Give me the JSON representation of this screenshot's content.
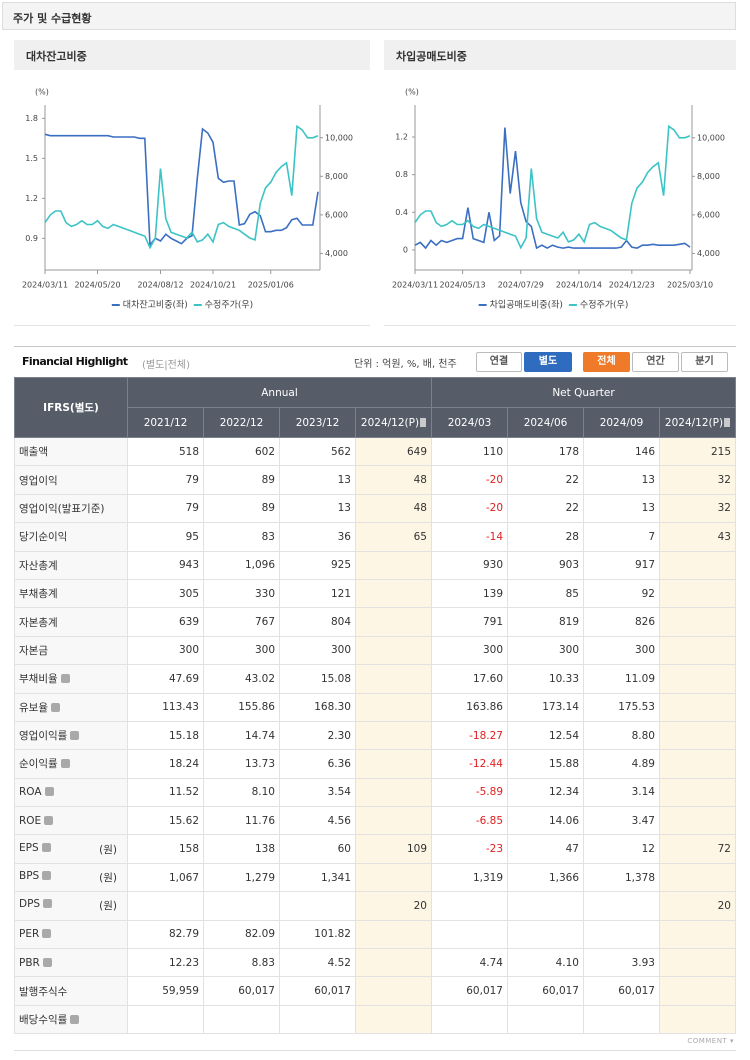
{
  "page_title": "주가 및 수급현황",
  "chart_data": [
    {
      "type": "line",
      "title": "대차잔고비중",
      "ylabel": "(%)",
      "x": [
        "2024/03/11",
        "2024/03/18",
        "2024/03/25",
        "2024/04/01",
        "2024/04/08",
        "2024/04/15",
        "2024/04/22",
        "2024/04/29",
        "2024/05/06",
        "2024/05/13",
        "2024/05/20",
        "2024/05/27",
        "2024/06/03",
        "2024/06/10",
        "2024/06/17",
        "2024/06/24",
        "2024/07/01",
        "2024/07/08",
        "2024/07/15",
        "2024/07/22",
        "2024/07/29",
        "2024/08/05",
        "2024/08/12",
        "2024/08/19",
        "2024/08/26",
        "2024/09/02",
        "2024/09/09",
        "2024/09/16",
        "2024/09/23",
        "2024/09/30",
        "2024/10/07",
        "2024/10/14",
        "2024/10/21",
        "2024/10/28",
        "2024/11/04",
        "2024/11/11",
        "2024/11/18",
        "2024/11/25",
        "2024/12/02",
        "2024/12/09",
        "2024/12/16",
        "2024/12/23",
        "2024/12/30",
        "2025/01/06",
        "2025/01/13",
        "2025/01/20",
        "2025/01/27",
        "2025/02/03",
        "2025/02/10",
        "2025/02/17",
        "2025/02/24",
        "2025/03/03",
        "2025/03/10"
      ],
      "xticks": [
        "2024/03/11",
        "2024/05/20",
        "2024/08/12",
        "2024/10/21",
        "2025/01/06"
      ],
      "ylim": [
        0.7,
        1.9
      ],
      "yticks": [
        0.9,
        1.2,
        1.5,
        1.8
      ],
      "y2lim": [
        3400,
        11700
      ],
      "y2ticks": [
        {
          "value": 4000,
          "label": "4,000"
        },
        {
          "value": 6000,
          "label": "6,000"
        },
        {
          "value": 8000,
          "label": "8,000"
        },
        {
          "value": 10000,
          "label": "10,000"
        }
      ],
      "grid": false,
      "legend": "bottom",
      "series": [
        {
          "name": "대차잔고비중(좌)",
          "color": "#3b6fc2",
          "values": [
            1.68,
            1.67,
            1.67,
            1.67,
            1.67,
            1.67,
            1.67,
            1.67,
            1.67,
            1.67,
            1.67,
            1.67,
            1.67,
            1.66,
            1.66,
            1.66,
            1.66,
            1.66,
            1.65,
            1.65,
            0.85,
            0.9,
            0.88,
            0.93,
            0.9,
            0.88,
            0.86,
            0.9,
            0.92,
            1.35,
            1.72,
            1.69,
            1.62,
            1.35,
            1.32,
            1.33,
            1.33,
            1.0,
            1.01,
            1.08,
            1.1,
            1.07,
            0.95,
            0.95,
            0.96,
            0.96,
            0.98,
            1.04,
            1.05,
            1.0,
            1.0,
            1.0,
            1.25
          ]
        },
        {
          "name": "수정주가(우)",
          "color": "#3cc3c6",
          "axis": "y2",
          "values": [
            5600,
            6000,
            6200,
            6200,
            5600,
            5400,
            5500,
            5700,
            5500,
            5500,
            5700,
            5400,
            5300,
            5500,
            5400,
            5300,
            5200,
            5100,
            5000,
            4900,
            4300,
            4800,
            8400,
            5800,
            5100,
            5000,
            4900,
            4800,
            5100,
            4600,
            4700,
            5000,
            4600,
            5500,
            5600,
            5400,
            5300,
            5200,
            5000,
            4800,
            4700,
            6600,
            7400,
            7700,
            8200,
            8500,
            8700,
            7000,
            10600,
            10400,
            10000,
            10000,
            10100
          ]
        }
      ]
    },
    {
      "type": "line",
      "title": "차입공매도비중",
      "ylabel": "(%)",
      "x": [
        "2024/03/11",
        "2024/03/18",
        "2024/03/25",
        "2024/04/01",
        "2024/04/08",
        "2024/04/15",
        "2024/04/22",
        "2024/04/29",
        "2024/05/06",
        "2024/05/13",
        "2024/05/20",
        "2024/05/27",
        "2024/06/03",
        "2024/06/10",
        "2024/06/17",
        "2024/06/24",
        "2024/07/01",
        "2024/07/08",
        "2024/07/15",
        "2024/07/22",
        "2024/07/29",
        "2024/08/05",
        "2024/08/12",
        "2024/08/19",
        "2024/08/26",
        "2024/09/02",
        "2024/09/09",
        "2024/09/16",
        "2024/09/23",
        "2024/09/30",
        "2024/10/07",
        "2024/10/14",
        "2024/10/21",
        "2024/10/28",
        "2024/11/04",
        "2024/11/11",
        "2024/11/18",
        "2024/11/25",
        "2024/12/02",
        "2024/12/09",
        "2024/12/16",
        "2024/12/23",
        "2024/12/30",
        "2025/01/06",
        "2025/01/13",
        "2025/01/20",
        "2025/01/27",
        "2025/02/03",
        "2025/02/10",
        "2025/02/17",
        "2025/02/24",
        "2025/03/03",
        "2025/03/10"
      ],
      "xticks": [
        "2024/03/11",
        "2024/05/13",
        "2024/07/29",
        "2024/10/14",
        "2024/12/23",
        "2025/03/10"
      ],
      "ylim": [
        -0.16,
        1.54
      ],
      "yticks": [
        0,
        0.4,
        0.8,
        1.2
      ],
      "y2lim": [
        3400,
        11700
      ],
      "y2ticks": [
        {
          "value": 4000,
          "label": "4,000"
        },
        {
          "value": 6000,
          "label": "6,000"
        },
        {
          "value": 8000,
          "label": "8,000"
        },
        {
          "value": 10000,
          "label": "10,000"
        }
      ],
      "grid": false,
      "legend": "bottom",
      "series": [
        {
          "name": "차입공매도비중(좌)",
          "color": "#3b6fc2",
          "values": [
            0.05,
            0.08,
            0.02,
            0.1,
            0.05,
            0.1,
            0.08,
            0.1,
            0.12,
            0.12,
            0.45,
            0.12,
            0.1,
            0.08,
            0.4,
            0.1,
            0.15,
            1.3,
            0.6,
            1.05,
            0.5,
            0.3,
            0.25,
            0.02,
            0.05,
            0.02,
            0.05,
            0.03,
            0.02,
            0.03,
            0.02,
            0.02,
            0.02,
            0.02,
            0.02,
            0.02,
            0.02,
            0.02,
            0.02,
            0.03,
            0.1,
            0.03,
            0.02,
            0.05,
            0.05,
            0.06,
            0.05,
            0.05,
            0.05,
            0.05,
            0.06,
            0.07,
            0.03
          ]
        },
        {
          "name": "수정주가(우)",
          "color": "#3cc3c6",
          "axis": "y2",
          "values": [
            5600,
            6000,
            6200,
            6200,
            5600,
            5400,
            5500,
            5700,
            5500,
            5500,
            5700,
            5400,
            5300,
            5500,
            5400,
            5300,
            5200,
            5100,
            5000,
            4900,
            4300,
            4800,
            8400,
            5800,
            5100,
            5000,
            4900,
            4800,
            5100,
            4600,
            4700,
            5000,
            4600,
            5500,
            5600,
            5400,
            5300,
            5200,
            5000,
            4800,
            4700,
            6600,
            7400,
            7700,
            8200,
            8500,
            8700,
            7000,
            10600,
            10400,
            10000,
            10000,
            10100
          ]
        }
      ]
    }
  ],
  "financial": {
    "title": "Financial Highlight",
    "subtitle": "(별도|전체)",
    "unit_note": "단위 : 억원, %, 배, 천주",
    "toggles": [
      [
        {
          "label": "연결"
        },
        {
          "label": "별도",
          "selected": true
        }
      ],
      [
        {
          "label": "전체",
          "selected": true
        },
        {
          "label": "연간"
        },
        {
          "label": "분기"
        }
      ]
    ],
    "comment": "COMMENT"
  },
  "table": {
    "corner": "IFRS(별도)",
    "groups": [
      {
        "label": "Annual",
        "periods": [
          "2021/12",
          "2022/12",
          "2023/12",
          "2024/12(P)"
        ]
      },
      {
        "label": "Net Quarter",
        "periods": [
          "2024/03",
          "2024/06",
          "2024/09",
          "2024/12(P)"
        ]
      }
    ],
    "rows": [
      {
        "label": "매출액",
        "values": [
          "518",
          "602",
          "562",
          "649",
          "110",
          "178",
          "146",
          "215"
        ]
      },
      {
        "label": "영업이익",
        "values": [
          "79",
          "89",
          "13",
          "48",
          "-20",
          "22",
          "13",
          "32"
        ]
      },
      {
        "label": "영업이익(발표기준)",
        "values": [
          "79",
          "89",
          "13",
          "48",
          "-20",
          "22",
          "13",
          "32"
        ]
      },
      {
        "label": "당기순이익",
        "values": [
          "95",
          "83",
          "36",
          "65",
          "-14",
          "28",
          "7",
          "43"
        ]
      },
      {
        "label": "자산총계",
        "values": [
          "943",
          "1,096",
          "925",
          null,
          "930",
          "903",
          "917",
          null
        ]
      },
      {
        "label": "부채총계",
        "values": [
          "305",
          "330",
          "121",
          null,
          "139",
          "85",
          "92",
          null
        ]
      },
      {
        "label": "자본총계",
        "values": [
          "639",
          "767",
          "804",
          null,
          "791",
          "819",
          "826",
          null
        ]
      },
      {
        "label": "자본금",
        "values": [
          "300",
          "300",
          "300",
          null,
          "300",
          "300",
          "300",
          null
        ]
      },
      {
        "label": "부채비율",
        "help": true,
        "values": [
          "47.69",
          "43.02",
          "15.08",
          null,
          "17.60",
          "10.33",
          "11.09",
          null
        ]
      },
      {
        "label": "유보율",
        "help": true,
        "values": [
          "113.43",
          "155.86",
          "168.30",
          null,
          "163.86",
          "173.14",
          "175.53",
          null
        ]
      },
      {
        "label": "영업이익률",
        "help": true,
        "values": [
          "15.18",
          "14.74",
          "2.30",
          null,
          "-18.27",
          "12.54",
          "8.80",
          null
        ]
      },
      {
        "label": "순이익률",
        "help": true,
        "values": [
          "18.24",
          "13.73",
          "6.36",
          null,
          "-12.44",
          "15.88",
          "4.89",
          null
        ]
      },
      {
        "label": "ROA",
        "help": true,
        "values": [
          "11.52",
          "8.10",
          "3.54",
          null,
          "-5.89",
          "12.34",
          "3.14",
          null
        ]
      },
      {
        "label": "ROE",
        "help": true,
        "values": [
          "15.62",
          "11.76",
          "4.56",
          null,
          "-6.85",
          "14.06",
          "3.47",
          null
        ]
      },
      {
        "label": "EPS",
        "help": true,
        "unit": "(원)",
        "values": [
          "158",
          "138",
          "60",
          "109",
          "-23",
          "47",
          "12",
          "72"
        ]
      },
      {
        "label": "BPS",
        "help": true,
        "unit": "(원)",
        "values": [
          "1,067",
          "1,279",
          "1,341",
          null,
          "1,319",
          "1,366",
          "1,378",
          null
        ]
      },
      {
        "label": "DPS",
        "help": true,
        "unit": "(원)",
        "values": [
          null,
          null,
          null,
          "20",
          null,
          null,
          null,
          "20"
        ]
      },
      {
        "label": "PER",
        "help": true,
        "values": [
          "82.79",
          "82.09",
          "101.82",
          null,
          null,
          null,
          null,
          null
        ]
      },
      {
        "label": "PBR",
        "help": true,
        "values": [
          "12.23",
          "8.83",
          "4.52",
          null,
          "4.74",
          "4.10",
          "3.93",
          null
        ]
      },
      {
        "label": "발행주식수",
        "values": [
          "59,959",
          "60,017",
          "60,017",
          null,
          "60,017",
          "60,017",
          "60,017",
          null
        ]
      },
      {
        "label": "배당수익률",
        "help": true,
        "values": [
          null,
          null,
          null,
          null,
          null,
          null,
          null,
          null
        ]
      }
    ]
  }
}
